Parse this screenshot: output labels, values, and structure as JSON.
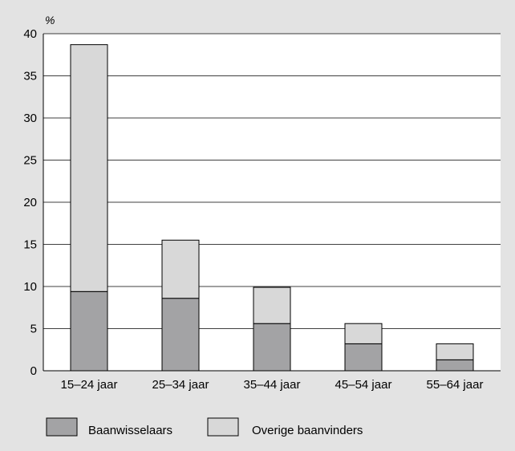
{
  "chart_data": {
    "type": "bar",
    "stacked": true,
    "unit_label": "%",
    "title": "",
    "xlabel": "",
    "ylabel": "",
    "categories": [
      "15–24 jaar",
      "25–34 jaar",
      "35–44 jaar",
      "45–54 jaar",
      "55–64 jaar"
    ],
    "series": [
      {
        "name": "Baanwisselaars",
        "values": [
          9.4,
          8.6,
          5.6,
          3.2,
          1.3
        ],
        "color": "#a3a3a5"
      },
      {
        "name": "Overige baanvinders",
        "values": [
          29.3,
          6.9,
          4.3,
          2.4,
          1.9
        ],
        "color": "#d8d8d8"
      }
    ],
    "ylim": [
      0,
      40
    ],
    "yticks": [
      0,
      5,
      10,
      15,
      20,
      25,
      30,
      35,
      40
    ],
    "grid": true,
    "legend_position": "bottom"
  },
  "colors": {
    "background": "#e3e3e3",
    "plot_background": "#ffffff",
    "axis": "#000000"
  }
}
